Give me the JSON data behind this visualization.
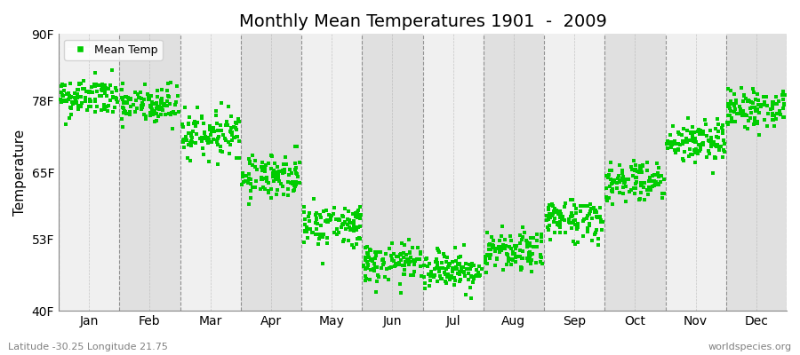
{
  "title": "Monthly Mean Temperatures 1901  -  2009",
  "ylabel": "Temperature",
  "xlabel_labels": [
    "Jan",
    "Feb",
    "Mar",
    "Apr",
    "May",
    "Jun",
    "Jul",
    "Aug",
    "Sep",
    "Oct",
    "Nov",
    "Dec"
  ],
  "ytick_labels": [
    "40F",
    "53F",
    "65F",
    "78F",
    "90F"
  ],
  "ytick_values": [
    40,
    53,
    65,
    78,
    90
  ],
  "ylim": [
    40,
    90
  ],
  "xlim": [
    -0.5,
    11.5
  ],
  "legend_label": "Mean Temp",
  "dot_color": "#00CC00",
  "dot_size": 5,
  "bg_color_light": "#F0F0F0",
  "bg_color_dark": "#E0E0E0",
  "footer_left": "Latitude -30.25 Longitude 21.75",
  "footer_right": "worldspecies.org",
  "years": 109,
  "monthly_means_F": [
    78.5,
    77.0,
    72.0,
    64.5,
    55.5,
    48.5,
    47.5,
    50.5,
    56.5,
    63.5,
    70.5,
    76.5
  ],
  "monthly_stds_F": [
    1.8,
    1.9,
    2.0,
    2.0,
    2.0,
    1.8,
    1.8,
    1.8,
    2.0,
    2.0,
    2.0,
    1.8
  ],
  "title_fontsize": 14,
  "axis_fontsize": 10,
  "ylabel_fontsize": 11
}
